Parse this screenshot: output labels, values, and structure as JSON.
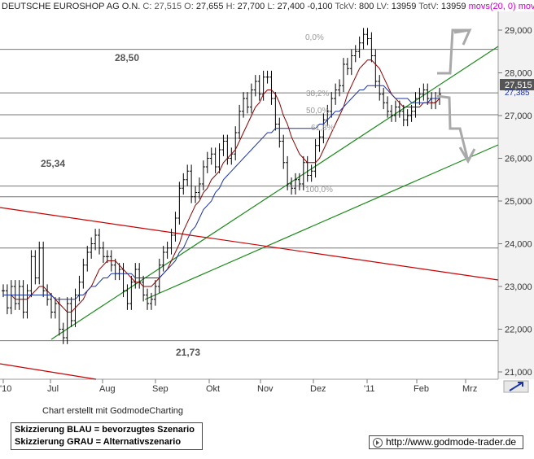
{
  "header": {
    "title": "DEUTSCHE EUROSHOP AG O.N.",
    "c_label": "C:",
    "c_value": "27,515",
    "o_label": "O:",
    "o_value": "27,655",
    "h_label": "H:",
    "h_value": "27,700",
    "l_label": "L:",
    "l_value": "27,400",
    "change": "-0,100",
    "tickv_label": "TckV:",
    "tickv_value": "800",
    "lv_label": "LV:",
    "lv_value": "13959",
    "totv_label": "TotV:",
    "totv_value": "13959",
    "mov1": "movs(20, 0)",
    "mov2": "movs(5"
  },
  "colors": {
    "background": "#ffffff",
    "price": "#000000",
    "ma_red": "#8b0000",
    "ma_blue": "#1a33a8",
    "trend_green": "#1a8a1a",
    "trend_red": "#cc0000",
    "level_gray": "#777777",
    "scenario_gray": "#a9a9a9",
    "yaxis_bg": "#f2f2f2",
    "current_label_bg": "#555555",
    "header_magenta": "#cc00cc"
  },
  "chart_data": {
    "type": "bar",
    "subtype": "ohlc-price-chart",
    "ylim": [
      20.9,
      29.2
    ],
    "y_ticks": [
      "29,000",
      "28,000",
      "27,000",
      "26,000",
      "25,000",
      "24,000",
      "23,000",
      "22,000",
      "21,000"
    ],
    "x_ticks": [
      "'10",
      "Jul",
      "Aug",
      "Sep",
      "Okt",
      "Nov",
      "Dez",
      "'11",
      "Feb",
      "Mrz"
    ],
    "current_price_label": "27,515",
    "current_ma_label": "27,385",
    "horizontal_levels": [
      28.55,
      27.53,
      27.02,
      26.47,
      25.35,
      25.1,
      23.9,
      21.73
    ],
    "level_annotations": [
      {
        "text": "28,50",
        "y": 28.5
      },
      {
        "text": "25,34",
        "y": 25.34
      },
      {
        "text": "21,73",
        "y": 21.73
      }
    ],
    "fib_labels": [
      {
        "text": "0,0%",
        "y": 28.9
      },
      {
        "text": "38,2%",
        "y": 27.3
      },
      {
        "text": "50,0%",
        "y": 26.9
      },
      {
        "text": "61,8%",
        "y": 26.35
      },
      {
        "text": "100,0%",
        "y": 25.05
      }
    ],
    "price_series": [
      22.9,
      22.5,
      23.0,
      22.6,
      23.0,
      22.4,
      22.9,
      23.7,
      23.2,
      23.9,
      22.9,
      22.7,
      22.4,
      22.6,
      22.0,
      21.8,
      22.6,
      22.2,
      22.8,
      23.1,
      23.5,
      23.8,
      24.0,
      24.2,
      23.9,
      23.7,
      23.7,
      23.5,
      23.3,
      23.4,
      22.9,
      22.6,
      23.1,
      23.4,
      23.1,
      22.8,
      22.6,
      22.7,
      23.0,
      23.5,
      23.8,
      23.9,
      24.2,
      24.6,
      25.3,
      25.5,
      25.7,
      25.1,
      25.2,
      25.4,
      25.8,
      26.0,
      26.1,
      25.8,
      26.2,
      26.4,
      26.0,
      26.1,
      26.6,
      27.1,
      27.4,
      27.2,
      27.6,
      27.8,
      27.5,
      27.9,
      27.9,
      27.4,
      26.8,
      26.4,
      25.9,
      25.4,
      25.3,
      25.5,
      25.4,
      25.9,
      25.6,
      25.7,
      26.3,
      26.5,
      26.9,
      27.1,
      27.4,
      27.6,
      27.7,
      28.2,
      28.1,
      28.4,
      28.5,
      28.7,
      28.9,
      28.8,
      28.4,
      27.8,
      27.5,
      27.3,
      27.1,
      27.0,
      27.2,
      27.1,
      26.9,
      27.0,
      27.1,
      27.4,
      27.5,
      27.6,
      27.4,
      27.3,
      27.4,
      27.5
    ],
    "ma_red_series": [
      22.8,
      22.8,
      22.8,
      22.7,
      22.7,
      22.7,
      22.7,
      22.8,
      22.9,
      23.0,
      23.0,
      22.9,
      22.8,
      22.7,
      22.6,
      22.5,
      22.4,
      22.4,
      22.5,
      22.6,
      22.7,
      22.9,
      23.0,
      23.2,
      23.4,
      23.5,
      23.6,
      23.6,
      23.6,
      23.5,
      23.4,
      23.3,
      23.2,
      23.1,
      23.1,
      23.0,
      23.0,
      23.0,
      23.1,
      23.2,
      23.3,
      23.4,
      23.6,
      23.8,
      24.0,
      24.3,
      24.5,
      24.7,
      24.9,
      25.0,
      25.2,
      25.3,
      25.5,
      25.6,
      25.7,
      25.9,
      26.0,
      26.1,
      26.2,
      26.4,
      26.6,
      26.8,
      27.0,
      27.2,
      27.3,
      27.5,
      27.6,
      27.6,
      27.5,
      27.3,
      27.0,
      26.8,
      26.5,
      26.3,
      26.1,
      26.0,
      25.9,
      25.9,
      25.9,
      26.0,
      26.2,
      26.4,
      26.6,
      26.8,
      27.0,
      27.2,
      27.5,
      27.7,
      27.9,
      28.1,
      28.2,
      28.3,
      28.3,
      28.2,
      28.1,
      27.9,
      27.7,
      27.5,
      27.4,
      27.3,
      27.2,
      27.2,
      27.2,
      27.2,
      27.2,
      27.3,
      27.3,
      27.3,
      27.3,
      27.4
    ],
    "ma_blue_series": [
      22.8,
      22.8,
      22.8,
      22.8,
      22.8,
      22.8,
      22.8,
      22.8,
      22.8,
      22.8,
      22.8,
      22.8,
      22.8,
      22.7,
      22.7,
      22.7,
      22.7,
      22.7,
      22.7,
      22.8,
      22.8,
      22.9,
      23.0,
      23.0,
      23.1,
      23.2,
      23.2,
      23.3,
      23.3,
      23.3,
      23.3,
      23.3,
      23.3,
      23.2,
      23.2,
      23.2,
      23.2,
      23.2,
      23.2,
      23.2,
      23.3,
      23.4,
      23.5,
      23.6,
      23.8,
      23.9,
      24.1,
      24.3,
      24.4,
      24.6,
      24.8,
      24.9,
      25.0,
      25.2,
      25.3,
      25.5,
      25.6,
      25.7,
      25.8,
      25.9,
      26.0,
      26.1,
      26.2,
      26.3,
      26.4,
      26.5,
      26.6,
      26.6,
      26.7,
      26.7,
      26.7,
      26.7,
      26.7,
      26.7,
      26.7,
      26.7,
      26.7,
      26.7,
      26.7,
      26.8,
      26.8,
      26.9,
      27.0,
      27.1,
      27.1,
      27.2,
      27.3,
      27.4,
      27.5,
      27.6,
      27.6,
      27.7,
      27.7,
      27.7,
      27.7,
      27.7,
      27.6,
      27.5,
      27.4,
      27.4,
      27.4,
      27.4,
      27.3,
      27.3,
      27.3,
      27.3,
      27.3,
      27.4,
      27.4,
      27.4
    ]
  },
  "footer": {
    "credit": "Chart erstellt mit GodmodeCharting",
    "legend_line1": "Skizzierung BLAU = bevorzugtes Szenario",
    "legend_line2": "Skizzierung GRAU = Alternativszenario",
    "url": "http://www.godmode-trader.de"
  }
}
